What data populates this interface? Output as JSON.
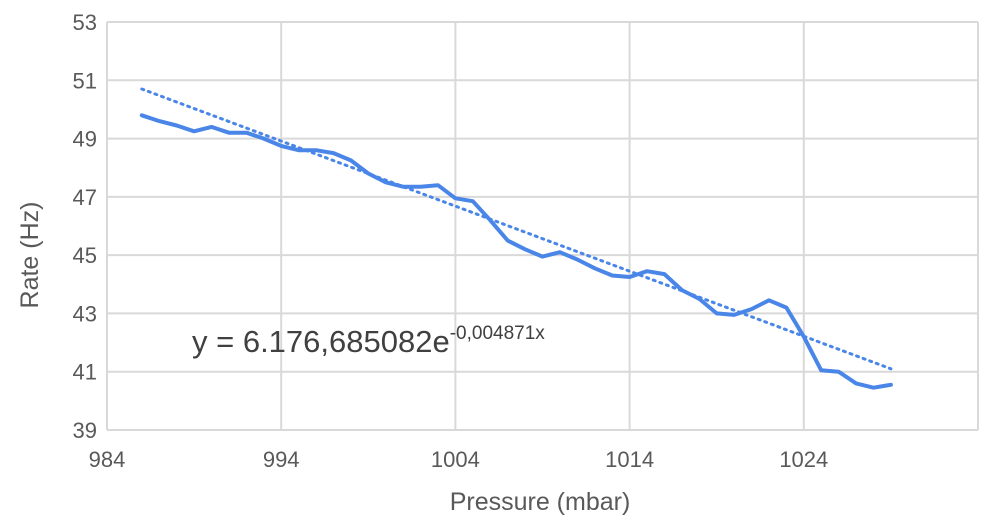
{
  "chart_data": {
    "type": "line",
    "xlabel": "Pressure (mbar)",
    "ylabel": "Rate (Hz)",
    "xlim": [
      984,
      1034
    ],
    "ylim": [
      39,
      53
    ],
    "x_ticks": [
      984,
      994,
      1004,
      1014,
      1024
    ],
    "y_ticks": [
      39,
      41,
      43,
      45,
      47,
      49,
      51,
      53
    ],
    "grid": true,
    "series": [
      {
        "color": "#4a86e8",
        "style": "solid",
        "x": [
          986,
          987,
          988,
          989,
          990,
          991,
          992,
          993,
          994,
          995,
          996,
          997,
          998,
          999,
          1000,
          1001,
          1002,
          1003,
          1004,
          1005,
          1006,
          1007,
          1008,
          1009,
          1010,
          1011,
          1012,
          1013,
          1014,
          1015,
          1016,
          1017,
          1018,
          1019,
          1020,
          1021,
          1022,
          1023,
          1024,
          1025,
          1026,
          1027,
          1028,
          1029
        ],
        "values": [
          49.8,
          49.6,
          49.45,
          49.25,
          49.4,
          49.2,
          49.2,
          49.0,
          48.75,
          48.6,
          48.6,
          48.5,
          48.25,
          47.8,
          47.5,
          47.35,
          47.35,
          47.4,
          46.95,
          46.85,
          46.2,
          45.5,
          45.2,
          44.95,
          45.1,
          44.85,
          44.55,
          44.3,
          44.25,
          44.45,
          44.35,
          43.8,
          43.5,
          43.0,
          42.95,
          43.15,
          43.45,
          43.2,
          42.2,
          41.05,
          41.0,
          40.6,
          40.45,
          40.55
        ]
      },
      {
        "type": "trendline",
        "color": "#4a86e8",
        "style": "dotted",
        "x": [
          986,
          1029
        ],
        "values": [
          50.7,
          41.1
        ]
      }
    ],
    "annotations": [
      {
        "text": "y = 6.176,685082e",
        "superscript": "-0,004871x"
      }
    ]
  }
}
